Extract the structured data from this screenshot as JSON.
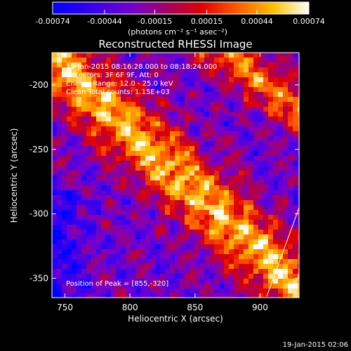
{
  "colorbar": {
    "tick_labels": [
      "-0.00074",
      "-0.00044",
      "-0.00015",
      "0.00015",
      "0.00044",
      "0.00074"
    ],
    "tick_values": [
      -0.00074,
      -0.00044,
      -0.00015,
      0.00015,
      0.00044,
      0.00074
    ],
    "range": [
      -0.00074,
      0.00074
    ],
    "units": "(photons cm⁻² s⁻¹ asec⁻²)"
  },
  "chart_data": {
    "type": "heatmap",
    "title": "Reconstructed RHESSI Image",
    "xlabel": "Heliocentric X (arcsec)",
    "ylabel": "Heliocentric Y (arcsec)",
    "xlim": [
      740,
      930
    ],
    "ylim": [
      -365,
      -175
    ],
    "xticks": [
      750,
      800,
      850,
      900
    ],
    "yticks": [
      -200,
      -250,
      -300,
      -350
    ],
    "annotations": {
      "time_range": "19-Jan-2015 08:16:28.000 to 08:18:24.000",
      "detectors": "Detectors: 3F 6F 9F, Att: 0",
      "energy": "Energy Range: 12.0 - 25.0 keV",
      "method": "Clean     Total counts: 1.15E+03",
      "peak": "Position of Peak = [855,-320]"
    },
    "peak": [
      855,
      -320
    ]
  },
  "footer": {
    "timestamp": "19-Jan-2015 02:06"
  }
}
